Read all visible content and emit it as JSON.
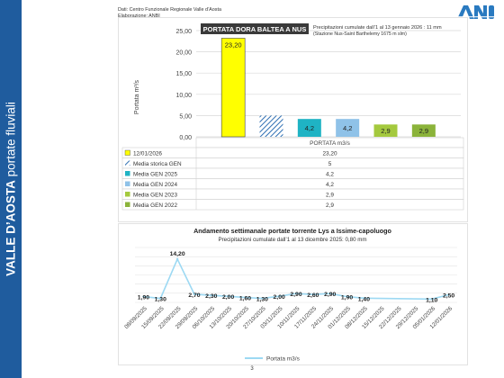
{
  "sidebar": {
    "title_bold": "VALLE D’AOSTA",
    "title_rest": " portate fluviali"
  },
  "meta": {
    "line1": "Dati: Centro Funzionale Regionale Valle d’Aosta",
    "line2": "Elaborazione: ANBI"
  },
  "logo": {
    "text": "ANBI",
    "color": "#2a7ac0"
  },
  "page_number": "3",
  "colors": {
    "bar_yellow": "#ffff00",
    "bar_blue": "#1fb3c4",
    "bar_lightblue": "#8fc2e8",
    "bar_olive": "#a4c93e",
    "bar_green": "#8bb33a",
    "line": "#9dd9f3",
    "title_box": "#3a3a3a"
  },
  "chart_data": [
    {
      "type": "bar",
      "title": "PORTATA DORA BALTEA A NUS",
      "note_line1": "Precipitazioni cumulate dall’1 al 13 gennaio 2026 : 11 mm",
      "note_line2": "(Stazione Nus-Saint Barthelemy 1675 m slm)",
      "ylabel": "Portata m³/s",
      "xlabel": "PORTATA m3/s",
      "ylim": [
        0,
        25
      ],
      "yticks": [
        "0,00",
        "5,00",
        "10,00",
        "15,00",
        "20,00",
        "25,00"
      ],
      "grid": true,
      "series": [
        {
          "name": "12/01/2026",
          "value": 23.2,
          "label": "23,20",
          "table": "23,20",
          "color": "#ffff00"
        },
        {
          "name": "Media storica GEN",
          "value": 5,
          "label": "",
          "table": "5",
          "color": "#2f6fb3",
          "hatched": true
        },
        {
          "name": "Media GEN 2025",
          "value": 4.2,
          "label": "4,2",
          "table": "4,2",
          "color": "#1fb3c4"
        },
        {
          "name": "Media GEN 2024",
          "value": 4.2,
          "label": "4,2",
          "table": "4,2",
          "color": "#8fc2e8"
        },
        {
          "name": "Media GEN 2023",
          "value": 2.9,
          "label": "2,9",
          "table": "2,9",
          "color": "#a4c93e"
        },
        {
          "name": "Media GEN 2022",
          "value": 2.9,
          "label": "2,9",
          "table": "2,9",
          "color": "#8bb33a"
        }
      ]
    },
    {
      "type": "line",
      "title": "Andamento settimanale portate torrente Lys a Issime-capoluogo",
      "subtitle": "Precipitazioni cumulate dall’1 al 13 dicembre 2025: 0,80 mm",
      "legend": "Portata m3/s",
      "legend_position": "bottom",
      "ylim": [
        0,
        18
      ],
      "grid": true,
      "x": [
        "08/09/2025",
        "15/09/2025",
        "22/09/2025",
        "29/09/2025",
        "06/10/2025",
        "13/10/2025",
        "20/10/2025",
        "27/10/2025",
        "03/11/2025",
        "10/11/2025",
        "17/11/2025",
        "24/11/2025",
        "01/12/2025",
        "08/12/2025",
        "15/12/2025",
        "22/12/2025",
        "29/12/2025",
        "05/01/2026",
        "12/01/2026"
      ],
      "values": [
        1.9,
        1.3,
        14.2,
        2.7,
        2.3,
        2.0,
        1.6,
        1.3,
        2.0,
        2.9,
        2.6,
        2.9,
        1.9,
        1.4,
        null,
        null,
        null,
        1.1,
        2.5
      ],
      "labels": [
        "1,90",
        "1,30",
        "14,20",
        "2,70",
        "2,30",
        "2,00",
        "1,60",
        "1,30",
        "2,00",
        "2,90",
        "2,60",
        "2,90",
        "1,90",
        "1,40",
        "",
        "",
        "",
        "1,10",
        "2,50"
      ]
    }
  ]
}
